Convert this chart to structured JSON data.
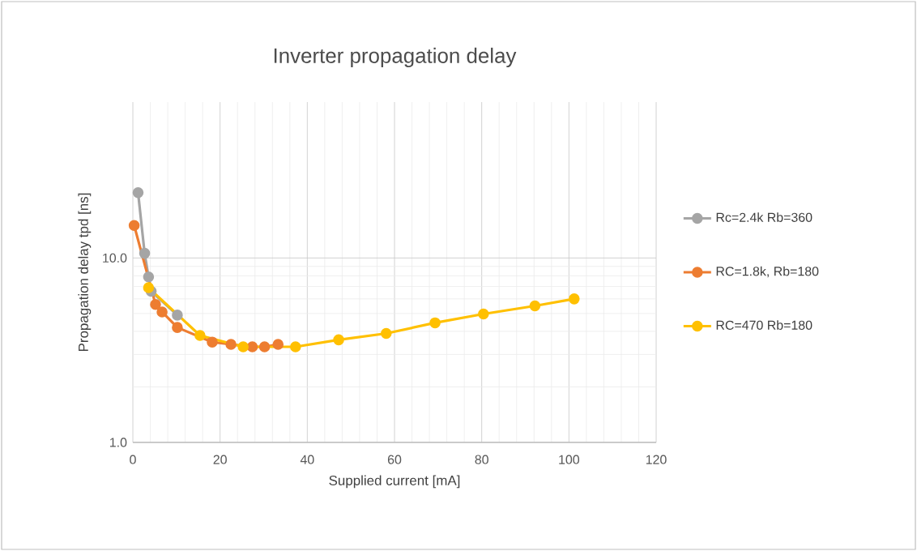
{
  "chart_data": {
    "type": "line",
    "title": "Inverter propagation delay",
    "xlabel": "Supplied current [mA]",
    "ylabel": "Propagation delay tpd [ns]",
    "xlim": [
      0,
      120
    ],
    "xticks": [
      0,
      20,
      40,
      60,
      80,
      100,
      120
    ],
    "ylim": [
      1,
      70
    ],
    "yticks": [
      {
        "value": 1,
        "label": "1.0"
      },
      {
        "value": 10,
        "label": "10.0"
      }
    ],
    "log": "y",
    "grid": true,
    "legend": "right",
    "marker": "circle",
    "series": [
      {
        "name": "Rc=2.4k Rb=360",
        "color": "#a5a5a5",
        "x": [
          1.2,
          2.7,
          3.6,
          4.2,
          6,
          10.2
        ],
        "values": [
          22.6,
          10.6,
          7.9,
          6.6,
          null,
          4.9
        ]
      },
      {
        "name": "RC=1.8k, Rb=180",
        "color": "#ed7d31",
        "x": [
          0.3,
          3.5,
          5.2,
          6.7,
          10.2,
          15.4,
          18.2,
          22.5,
          27.4,
          30.2,
          33.3
        ],
        "values": [
          15,
          null,
          5.6,
          5.1,
          4.2,
          null,
          3.5,
          3.4,
          3.3,
          3.3,
          3.4
        ]
      },
      {
        "name": "RC=470 Rb=180",
        "color": "#ffc000",
        "x": [
          3.6,
          15.4,
          25.3,
          37.3,
          47.2,
          58.1,
          69.3,
          80.4,
          92.2,
          101.2
        ],
        "values": [
          6.9,
          3.8,
          3.3,
          3.3,
          3.6,
          3.9,
          4.45,
          4.97,
          5.5,
          6.0
        ]
      }
    ]
  }
}
